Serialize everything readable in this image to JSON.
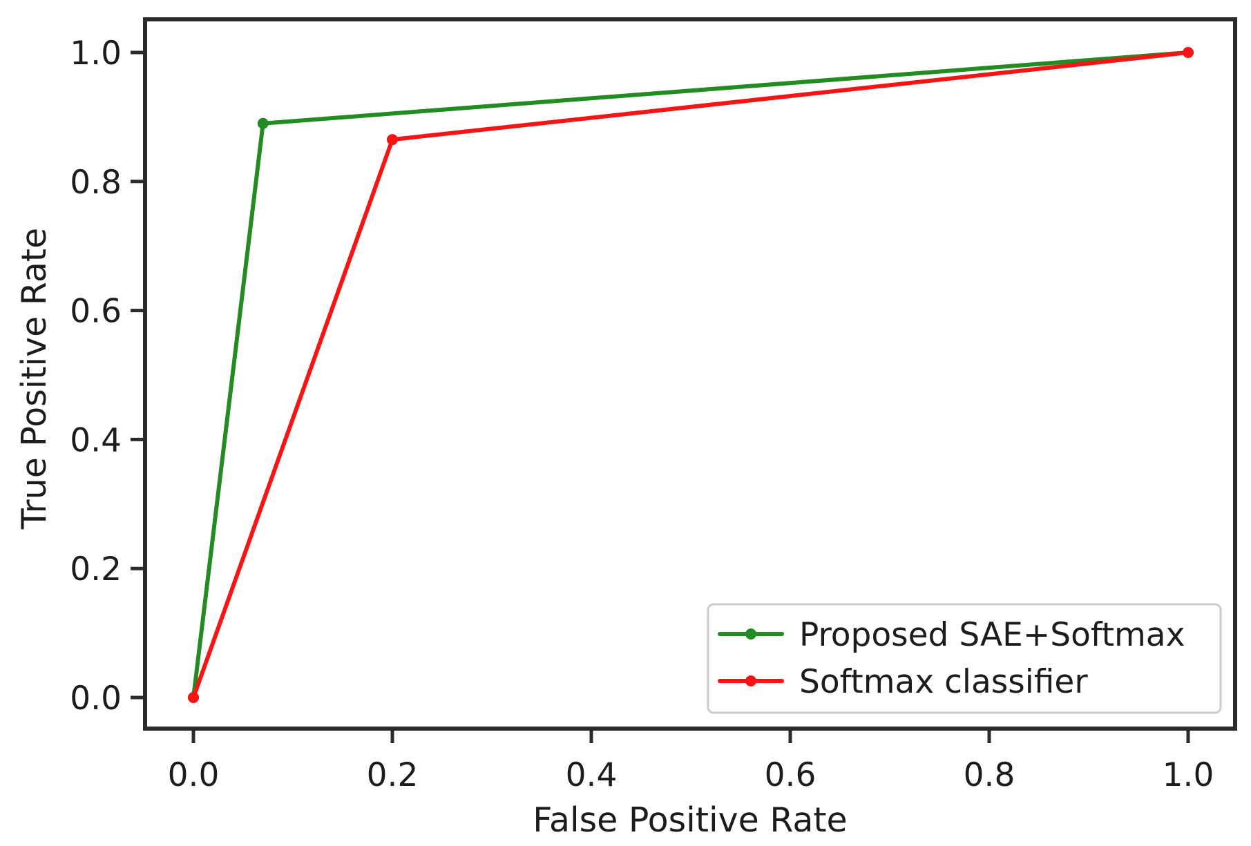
{
  "chart_data": {
    "type": "line",
    "title": "",
    "xlabel": "False Positive Rate",
    "ylabel": "True Positive Rate",
    "xlim": [
      -0.05,
      1.05
    ],
    "ylim": [
      -0.05,
      1.05
    ],
    "grid": false,
    "legend_position": "lower right",
    "x_ticks": {
      "values": [
        0.0,
        0.2,
        0.4,
        0.6,
        0.8,
        1.0
      ],
      "labels": [
        "0.0",
        "0.2",
        "0.4",
        "0.6",
        "0.8",
        "1.0"
      ]
    },
    "y_ticks": {
      "values": [
        0.0,
        0.2,
        0.4,
        0.6,
        0.8,
        1.0
      ],
      "labels": [
        "0.0",
        "0.2",
        "0.4",
        "0.6",
        "0.8",
        "1.0"
      ]
    },
    "series": [
      {
        "name": "Proposed SAE+Softmax",
        "color": "#228b22",
        "marker": "circle",
        "points": [
          {
            "x": 0.0,
            "y": 0.0
          },
          {
            "x": 0.07,
            "y": 0.89
          },
          {
            "x": 1.0,
            "y": 1.0
          }
        ]
      },
      {
        "name": "Softmax classifier",
        "color": "#f81414",
        "marker": "circle",
        "points": [
          {
            "x": 0.0,
            "y": 0.0
          },
          {
            "x": 0.2,
            "y": 0.865
          },
          {
            "x": 1.0,
            "y": 1.0
          }
        ]
      }
    ],
    "colors": {
      "axis": "#2b2b2b",
      "text": "#1c1c1c",
      "legend_border": "#cccccc",
      "background": "#ffffff"
    }
  }
}
